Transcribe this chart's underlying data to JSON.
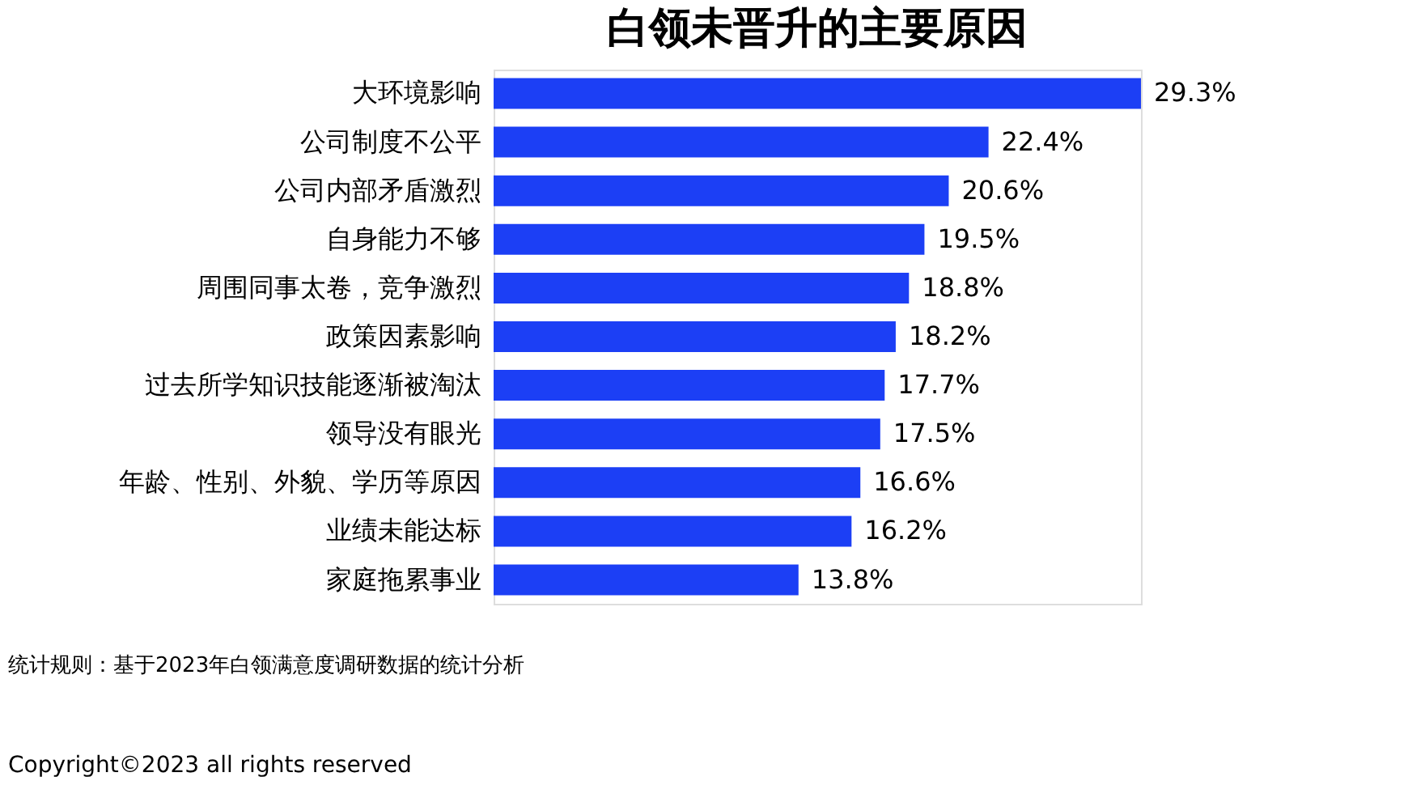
{
  "chart_data": {
    "type": "bar",
    "orientation": "horizontal",
    "title": "白领未晋升的主要原因",
    "categories": [
      "大环境影响",
      "公司制度不公平",
      "公司内部矛盾激烈",
      "自身能力不够",
      "周围同事太卷，竞争激烈",
      "政策因素影响",
      "过去所学知识技能逐渐被淘汰",
      "领导没有眼光",
      "年龄、性别、外貌、学历等原因",
      "业绩未能达标",
      "家庭拖累事业"
    ],
    "values": [
      29.3,
      22.4,
      20.6,
      19.5,
      18.8,
      18.2,
      17.7,
      17.5,
      16.6,
      16.2,
      13.8
    ],
    "value_labels": [
      "29.3%",
      "22.4%",
      "20.6%",
      "19.5%",
      "18.8%",
      "18.2%",
      "17.7%",
      "17.5%",
      "16.6%",
      "16.2%",
      "13.8%"
    ],
    "color": "#1c3ff5",
    "annotations": [
      "统计规则：基于2023年白领满意度调研数据的统计分析",
      "Copyright©2023 all rights reserved"
    ]
  }
}
